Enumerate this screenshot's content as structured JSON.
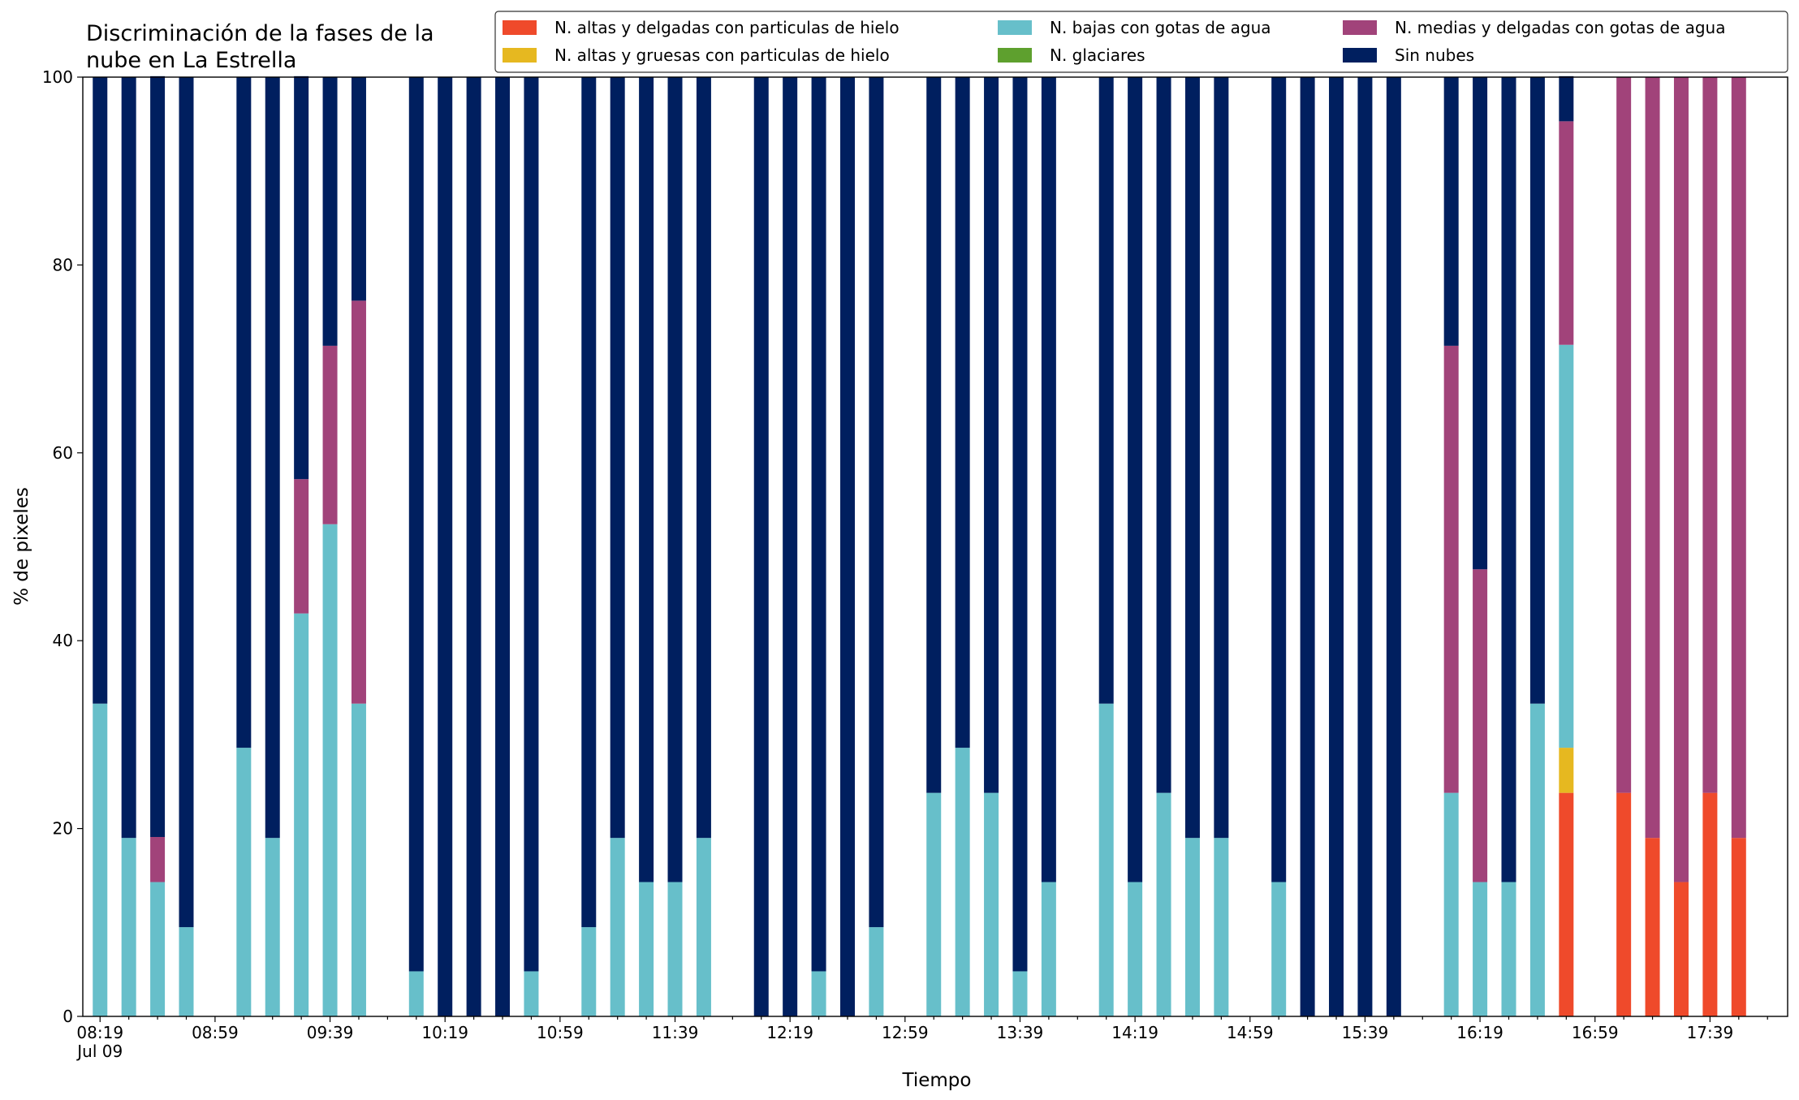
{
  "chart_data": {
    "type": "stacked_bar",
    "title_lines": [
      "Discriminación de la fases de la",
      "nube en La Estrella"
    ],
    "x_label": "Tiempo",
    "y_label": "% de pixeles",
    "x_sublabel": "Jul 09",
    "categories": [
      "08:19",
      null,
      null,
      null,
      "08:59",
      null,
      null,
      null,
      "09:39",
      null,
      null,
      null,
      "10:19",
      null,
      null,
      null,
      "10:59",
      null,
      null,
      null,
      "11:39",
      null,
      null,
      null,
      "12:19",
      null,
      null,
      null,
      "12:59",
      null,
      null,
      null,
      "13:39",
      null,
      null,
      null,
      "14:19",
      null,
      null,
      null,
      "14:59",
      null,
      null,
      null,
      "15:39",
      null,
      null,
      null,
      "16:19",
      null,
      null,
      null,
      "16:59",
      null,
      null,
      null,
      "17:39",
      null
    ],
    "ylim": [
      0,
      100
    ],
    "yticks": [
      0,
      20,
      40,
      60,
      80,
      100
    ],
    "legend_position": "top-right",
    "series": [
      {
        "name": "N. altas y delgadas con particulas de hielo",
        "color": "#ef4a2b",
        "values": [
          0,
          0,
          0,
          0,
          null,
          0,
          0,
          0,
          0,
          0,
          null,
          0,
          0,
          0,
          0,
          0,
          null,
          0,
          0,
          0,
          0,
          0,
          null,
          0,
          0,
          0,
          0,
          0,
          null,
          0,
          0,
          0,
          0,
          0,
          null,
          0,
          0,
          0,
          0,
          0,
          null,
          0,
          0,
          0,
          0,
          0,
          null,
          0,
          0,
          0,
          0,
          23.8,
          null,
          23.8,
          19,
          14.3,
          23.8,
          19
        ]
      },
      {
        "name": "N. altas y gruesas con particulas de hielo",
        "color": "#e6b820",
        "values": [
          0,
          0,
          0,
          0,
          null,
          0,
          0,
          0,
          0,
          0,
          null,
          0,
          0,
          0,
          0,
          0,
          null,
          0,
          0,
          0,
          0,
          0,
          null,
          0,
          0,
          0,
          0,
          0,
          null,
          0,
          0,
          0,
          0,
          0,
          null,
          0,
          0,
          0,
          0,
          0,
          null,
          0,
          0,
          0,
          0,
          0,
          null,
          0,
          0,
          0,
          0,
          4.8,
          null,
          0,
          0,
          0,
          0,
          0
        ]
      },
      {
        "name": "N. bajas con gotas de agua",
        "color": "#67bfca",
        "values": [
          33.3,
          19,
          14.3,
          9.5,
          null,
          28.6,
          19,
          42.9,
          52.4,
          33.3,
          null,
          4.8,
          0,
          0,
          0,
          4.8,
          null,
          9.5,
          19,
          14.3,
          14.3,
          19,
          null,
          0,
          0,
          4.8,
          0,
          9.5,
          null,
          23.8,
          28.6,
          23.8,
          4.8,
          14.3,
          null,
          33.3,
          14.3,
          23.8,
          19,
          19,
          null,
          14.3,
          0,
          0,
          0,
          0,
          null,
          23.8,
          14.3,
          14.3,
          33.3,
          42.9,
          null,
          0,
          0,
          0,
          0,
          0
        ]
      },
      {
        "name": "N. glaciares",
        "color": "#5ea02e",
        "values": [
          0,
          0,
          0,
          0,
          null,
          0,
          0,
          0,
          0,
          0,
          null,
          0,
          0,
          0,
          0,
          0,
          null,
          0,
          0,
          0,
          0,
          0,
          null,
          0,
          0,
          0,
          0,
          0,
          null,
          0,
          0,
          0,
          0,
          0,
          null,
          0,
          0,
          0,
          0,
          0,
          null,
          0,
          0,
          0,
          0,
          0,
          null,
          0,
          0,
          0,
          0,
          0,
          null,
          0,
          0,
          0,
          0,
          0
        ]
      },
      {
        "name": "N. medias y delgadas con gotas de agua",
        "color": "#a1437a",
        "values": [
          0,
          0,
          4.8,
          0,
          null,
          0,
          0,
          14.3,
          19,
          42.9,
          null,
          0,
          0,
          0,
          0,
          0,
          null,
          0,
          0,
          0,
          0,
          0,
          null,
          0,
          0,
          0,
          0,
          0,
          null,
          0,
          0,
          0,
          0,
          0,
          null,
          0,
          0,
          0,
          0,
          0,
          null,
          0,
          0,
          0,
          0,
          0,
          null,
          47.6,
          33.3,
          0,
          0,
          23.8,
          null,
          76.2,
          81,
          85.7,
          76.2,
          81
        ]
      },
      {
        "name": "Sin nubes",
        "color": "#001f5f",
        "values": [
          66.7,
          81,
          81,
          90.5,
          null,
          71.4,
          81,
          42.9,
          28.6,
          23.8,
          null,
          95.2,
          100,
          100,
          100,
          95.2,
          null,
          90.5,
          81,
          85.7,
          85.7,
          81,
          null,
          100,
          100,
          95.2,
          100,
          90.5,
          null,
          76.2,
          71.4,
          76.2,
          95.2,
          85.7,
          null,
          66.7,
          85.7,
          76.2,
          81,
          81,
          null,
          85.7,
          100,
          100,
          100,
          100,
          null,
          28.6,
          52.4,
          85.7,
          66.7,
          4.8,
          null,
          0,
          0,
          0,
          0,
          0
        ]
      }
    ]
  }
}
